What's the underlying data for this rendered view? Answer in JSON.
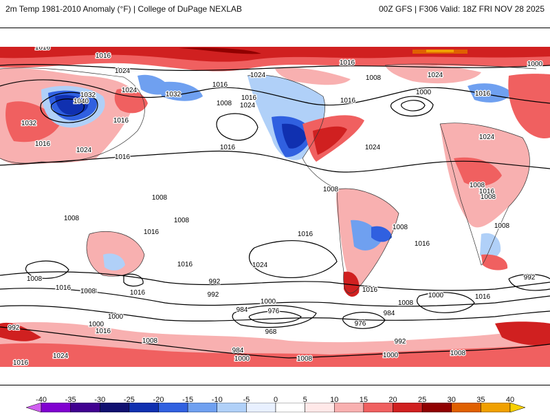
{
  "header": {
    "left": "2m Temp 1981-2010 Anomaly (°F) | College of DuPage NEXLAB",
    "right": "00Z GFS | F306 Valid: 18Z FRI NOV 28 2025"
  },
  "colorbar": {
    "ticks": [
      "-40",
      "-35",
      "-30",
      "-25",
      "-20",
      "-15",
      "-10",
      "-5",
      "0",
      "5",
      "10",
      "15",
      "20",
      "25",
      "30",
      "35",
      "40"
    ],
    "colors": [
      "#d060f0",
      "#8000d0",
      "#400090",
      "#101070",
      "#1030b0",
      "#3060e0",
      "#6fa0f0",
      "#b0d0f8",
      "#e8f0ff",
      "#ffffff",
      "#ffe8e8",
      "#f8b0b0",
      "#f06060",
      "#d02020",
      "#900000",
      "#e06000",
      "#f0a000",
      "#f8d000"
    ]
  },
  "pressure_labels": [
    {
      "text": "1016"
    },
    {
      "text": "1016"
    },
    {
      "text": "1024"
    },
    {
      "text": "1024"
    },
    {
      "text": "1032"
    },
    {
      "text": "1040"
    },
    {
      "text": "1024"
    },
    {
      "text": "1032"
    },
    {
      "text": "1016"
    },
    {
      "text": "1008"
    },
    {
      "text": "1024"
    },
    {
      "text": "1016"
    },
    {
      "text": "1032"
    },
    {
      "text": "1016"
    },
    {
      "text": "1024"
    },
    {
      "text": "1016"
    },
    {
      "text": "1016"
    },
    {
      "text": "1016"
    },
    {
      "text": "1024"
    },
    {
      "text": "1016"
    },
    {
      "text": "1008"
    },
    {
      "text": "1016"
    },
    {
      "text": "1024"
    },
    {
      "text": "1000"
    },
    {
      "text": "1008"
    },
    {
      "text": "1000"
    },
    {
      "text": "1016"
    },
    {
      "text": "1024"
    },
    {
      "text": "1016"
    },
    {
      "text": "1008"
    },
    {
      "text": "1008"
    },
    {
      "text": "1008"
    },
    {
      "text": "1008"
    },
    {
      "text": "1008"
    },
    {
      "text": "1008"
    },
    {
      "text": "1016"
    },
    {
      "text": "1016"
    },
    {
      "text": "1024"
    },
    {
      "text": "1016"
    },
    {
      "text": "1008"
    },
    {
      "text": "1016"
    },
    {
      "text": "1008"
    },
    {
      "text": "1016"
    },
    {
      "text": "1008"
    },
    {
      "text": "1016"
    },
    {
      "text": "992"
    },
    {
      "text": "1000"
    },
    {
      "text": "1008"
    },
    {
      "text": "992"
    },
    {
      "text": "984"
    },
    {
      "text": "976"
    },
    {
      "text": "968"
    },
    {
      "text": "976"
    },
    {
      "text": "984"
    },
    {
      "text": "1000"
    },
    {
      "text": "1016"
    },
    {
      "text": "1000"
    },
    {
      "text": "1008"
    },
    {
      "text": "1024"
    },
    {
      "text": "1016"
    },
    {
      "text": "984"
    },
    {
      "text": "1000"
    },
    {
      "text": "1008"
    },
    {
      "text": "1000"
    },
    {
      "text": "992"
    },
    {
      "text": "1008"
    },
    {
      "text": "1016"
    },
    {
      "text": "992"
    },
    {
      "text": "1008"
    },
    {
      "text": "1000"
    },
    {
      "text": "1016"
    },
    {
      "text": "992"
    }
  ]
}
